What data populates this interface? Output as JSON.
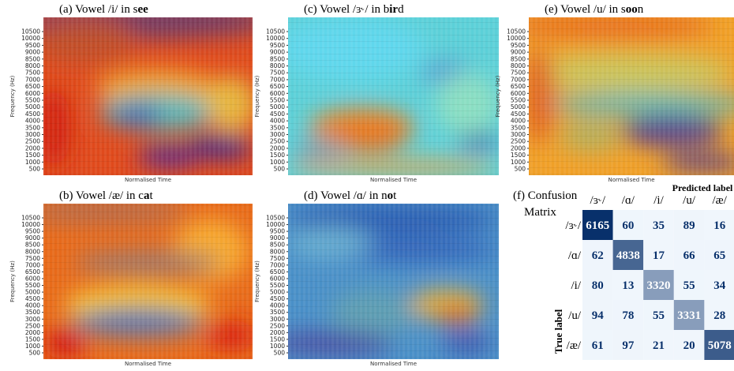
{
  "axes": {
    "ylabel": "Frequency (Hz)",
    "xlabel": "Normalised Time",
    "yticks": [
      500,
      1000,
      1500,
      2000,
      2500,
      3000,
      3500,
      4000,
      4500,
      5000,
      5500,
      6000,
      6500,
      7000,
      7500,
      8000,
      8500,
      9000,
      9500,
      10000,
      10500
    ]
  },
  "panels": [
    {
      "title": [
        {
          "text": "(a) Vowel /i/ in s"
        },
        {
          "text": "ee",
          "bold": true
        }
      ]
    },
    {
      "title": [
        {
          "text": "(c) Vowel /ɜ˞/ in b"
        },
        {
          "text": "ir",
          "bold": true
        },
        {
          "text": "d"
        }
      ]
    },
    {
      "title": [
        {
          "text": "(e) Vowel /u/ in s"
        },
        {
          "text": "oo",
          "bold": true
        },
        {
          "text": "n"
        }
      ]
    },
    {
      "title": [
        {
          "text": "(b) Vowel /æ/ in c"
        },
        {
          "text": "a",
          "bold": true
        },
        {
          "text": "t"
        }
      ]
    },
    {
      "title": [
        {
          "text": "(d) Vowel /ɑ/ in n"
        },
        {
          "text": "o",
          "bold": true
        },
        {
          "text": "t"
        }
      ]
    }
  ],
  "confusion": {
    "title": [
      "(f) Confusion",
      "Matrix"
    ],
    "xlabel": "Predicted label",
    "ylabel": "True label",
    "labels": [
      "/ɜ˞/",
      "/ɑ/",
      "/i/",
      "/u/",
      "/æ/"
    ],
    "rows": [
      [
        6165,
        60,
        35,
        89,
        16
      ],
      [
        62,
        4838,
        17,
        66,
        65
      ],
      [
        80,
        13,
        3320,
        55,
        34
      ],
      [
        94,
        78,
        55,
        3331,
        28
      ],
      [
        61,
        97,
        21,
        20,
        5078
      ]
    ]
  }
}
